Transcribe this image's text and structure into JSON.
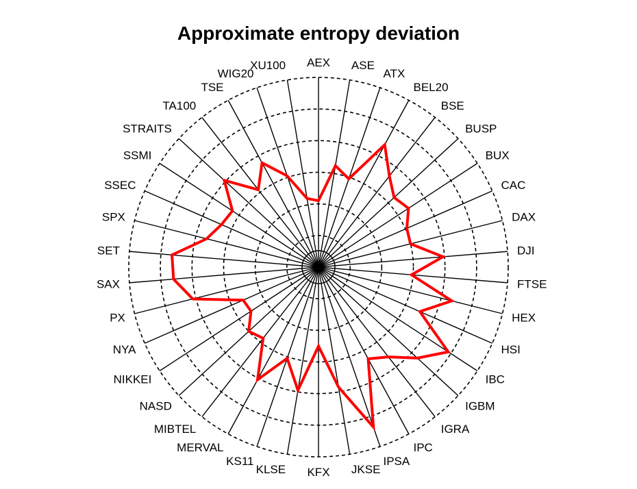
{
  "chart_data": {
    "type": "radar",
    "title": "Approximate entropy deviation",
    "categories": [
      "AEX",
      "ASE",
      "ATX",
      "BEL20",
      "BSE",
      "BUSP",
      "BUX",
      "CAC",
      "DAX",
      "DJI",
      "FTSE",
      "HEX",
      "HSI",
      "IBC",
      "IGBM",
      "IGRA",
      "IPC",
      "IPSA",
      "JKSE",
      "KFX",
      "KLSE",
      "KS11",
      "MERVAL",
      "MIBTEL",
      "NASD",
      "NIKKEI",
      "NYA",
      "PX",
      "SAX",
      "SET",
      "SPX",
      "SSEC",
      "SSMI",
      "STRAITS",
      "TA100",
      "TSE",
      "WIG20",
      "XU100"
    ],
    "values": [
      0.42,
      0.65,
      0.59,
      0.88,
      0.73,
      0.65,
      0.68,
      0.61,
      0.6,
      0.79,
      0.59,
      0.87,
      0.7,
      0.98,
      0.85,
      0.72,
      0.66,
      1.07,
      0.77,
      0.5,
      0.79,
      0.61,
      0.81,
      0.57,
      0.6,
      0.51,
      0.52,
      0.82,
      0.92,
      0.93,
      0.73,
      0.67,
      0.65,
      0.81,
      0.62,
      0.75,
      0.61,
      0.44
    ],
    "rlim": [
      0,
      1.2
    ],
    "rings": 6,
    "series_color": "#ff0000"
  }
}
